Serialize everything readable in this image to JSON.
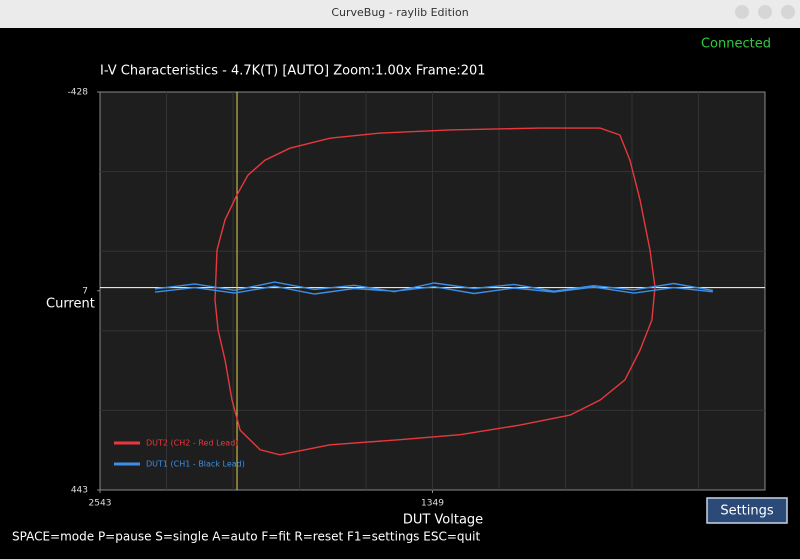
{
  "window_title": "CurveBug - raylib Edition",
  "status": "Connected",
  "settings_button": "Settings",
  "footer": "SPACE=mode P=pause S=single A=auto F=fit R=reset F1=settings ESC=quit",
  "chart_data": {
    "type": "line",
    "title": "I-V Characteristics - 4.7K(T) [AUTO] Zoom:1.00x Frame:201",
    "x_label": "DUT Voltage",
    "y_label": "Current",
    "xlim": [
      2543,
      155
    ],
    "ylim": [
      443,
      -428
    ],
    "xticks": [
      2543,
      1349
    ],
    "yticks": [
      -428,
      7,
      443
    ],
    "grid": true,
    "cursor_x": 2051,
    "legend": "lower left",
    "series": [
      {
        "name": "DUT2 (CH2 - Red Lead)",
        "color": "#e8383d",
        "x": [
          2130,
          2123,
          2094,
          2051,
          2012,
          1950,
          1861,
          1717,
          1538,
          1286,
          963,
          747,
          676,
          640,
          604,
          568,
          550,
          561,
          604,
          658,
          747,
          855,
          1035,
          1250,
          1466,
          1717,
          1897,
          1968,
          2040,
          2069,
          2094,
          2119,
          2130
        ],
        "values": [
          27,
          -82,
          -148,
          -203,
          -246,
          -279,
          -305,
          -327,
          -338,
          -345,
          -349,
          -349,
          -334,
          -279,
          -192,
          -82,
          -1,
          71,
          137,
          202,
          246,
          279,
          301,
          322,
          333,
          344,
          366,
          355,
          312,
          246,
          158,
          93,
          27
        ]
      },
      {
        "name": "DUT1 (CH1 - Black Lead)",
        "color": "#3b8fe8",
        "x": [
          2346,
          2203,
          2060,
          1916,
          1773,
          1630,
          1486,
          1343,
          1200,
          1056,
          913,
          770,
          626,
          483,
          345,
          345,
          483,
          626,
          770,
          913,
          1056,
          1200,
          1343,
          1486,
          1630,
          1773,
          1916,
          2060,
          2203,
          2346
        ],
        "values": [
          3,
          -8,
          6,
          -12,
          4,
          -5,
          9,
          -10,
          2,
          -7,
          8,
          -4,
          5,
          -9,
          6,
          9,
          0,
          12,
          -1,
          10,
          1,
          13,
          -2,
          8,
          2,
          14,
          -3,
          12,
          0,
          10
        ]
      }
    ]
  }
}
